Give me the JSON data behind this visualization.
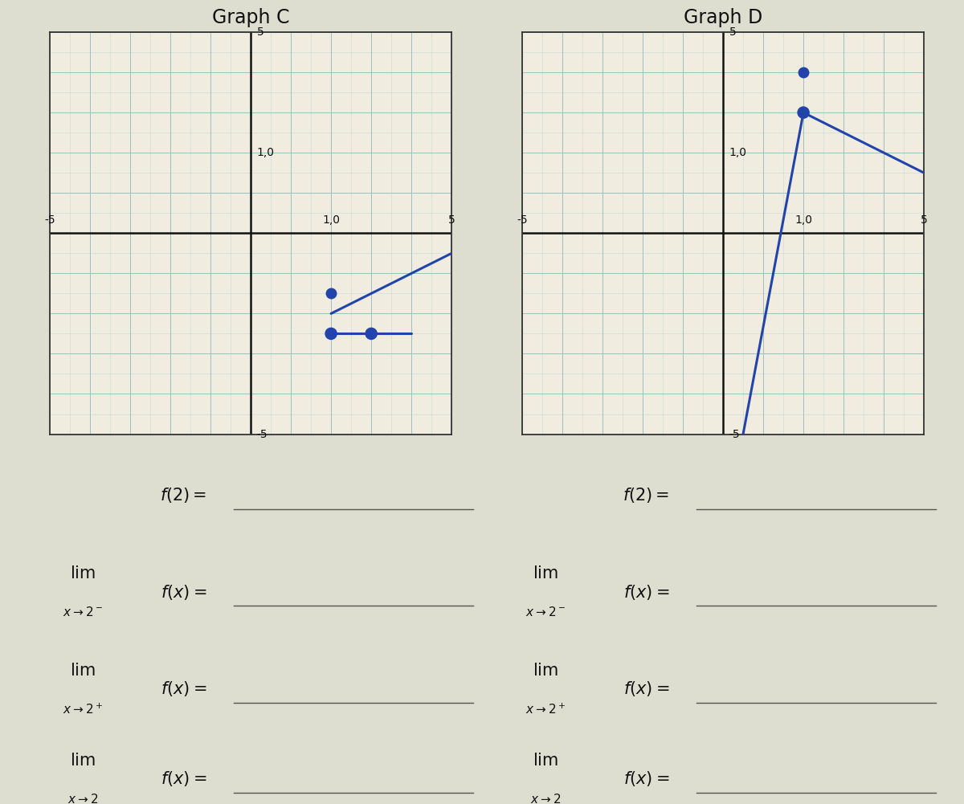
{
  "graph_c_title": "Graph C",
  "graph_d_title": "Graph D",
  "xlim": [
    -5,
    5
  ],
  "ylim": [
    -5,
    5
  ],
  "bg_color": "#f0ece0",
  "outer_bg": "#ddddd0",
  "grid_color": "#9dbfbf",
  "grid_color2": "#c8dada",
  "line_color": "#2244aa",
  "graph_c": {
    "lines": [
      {
        "x": [
          2,
          5
        ],
        "y": [
          -2,
          -0.5
        ]
      },
      {
        "x": [
          2,
          4
        ],
        "y": [
          -2.5,
          -2.5
        ]
      }
    ],
    "open_circles": [
      [
        2,
        -2.5
      ],
      [
        3,
        -2.5
      ]
    ],
    "filled_circles": [
      [
        2,
        -1.5
      ]
    ]
  },
  "graph_d": {
    "lines": [
      {
        "x": [
          0.5,
          2
        ],
        "y": [
          -5,
          3
        ]
      },
      {
        "x": [
          2,
          5
        ],
        "y": [
          3,
          1.5
        ]
      }
    ],
    "open_circles": [
      [
        2,
        3
      ]
    ],
    "filled_circles": [
      [
        2,
        4
      ]
    ]
  },
  "tick_label_fontsize": 10,
  "title_fontsize": 17,
  "formula_fontsize": 15,
  "formula_sub_fontsize": 11
}
